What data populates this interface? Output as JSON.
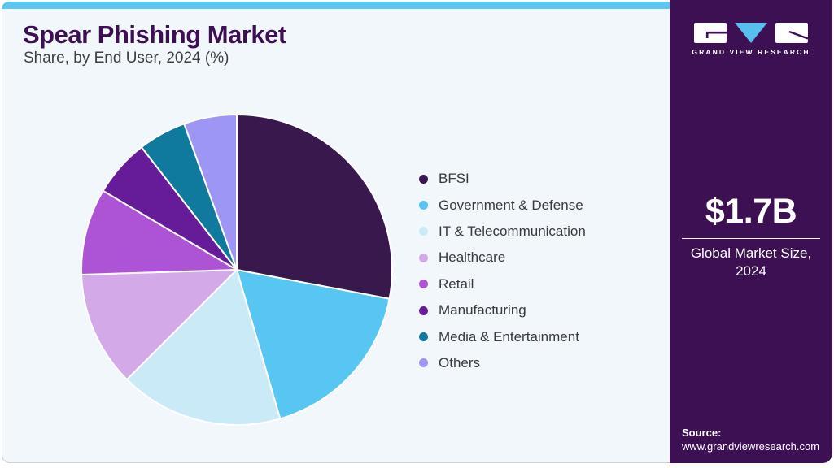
{
  "header": {
    "title": "Spear Phishing Market",
    "subtitle": "Share, by End User, 2024 (%)"
  },
  "chart_data": {
    "type": "pie",
    "title": "Spear Phishing Market Share, by End User, 2024 (%)",
    "unit": "%",
    "start_angle_deg": 0,
    "direction": "clockwise",
    "legend_position": "right",
    "slices": [
      {
        "label": "BFSI",
        "value": 28.0,
        "color": "#39184E"
      },
      {
        "label": "Government & Defense",
        "value": 17.5,
        "color": "#57C6F2"
      },
      {
        "label": "IT & Telecommunication",
        "value": 17.0,
        "color": "#CBEAF8"
      },
      {
        "label": "Healthcare",
        "value": 12.0,
        "color": "#D4A9E8"
      },
      {
        "label": "Retail",
        "value": 9.0,
        "color": "#AD53D5"
      },
      {
        "label": "Manufacturing",
        "value": 6.0,
        "color": "#661B98"
      },
      {
        "label": "Media & Entertainment",
        "value": 5.0,
        "color": "#10799E"
      },
      {
        "label": "Others",
        "value": 5.5,
        "color": "#9D96F5"
      }
    ]
  },
  "sidebar": {
    "brand": "GRAND VIEW RESEARCH",
    "market_size": {
      "value": "$1.7B",
      "label": "Global Market Size, 2024"
    },
    "source": {
      "label": "Source:",
      "url": "www.grandviewresearch.com"
    }
  },
  "colors": {
    "topbar": "#5BC6EE",
    "card_bg": "#F2F7FB",
    "sidebar_bg": "#3C1053",
    "title": "#3C1053",
    "logo_triangle": "#56BFEE",
    "slice_stroke": "#FFFFFF"
  }
}
